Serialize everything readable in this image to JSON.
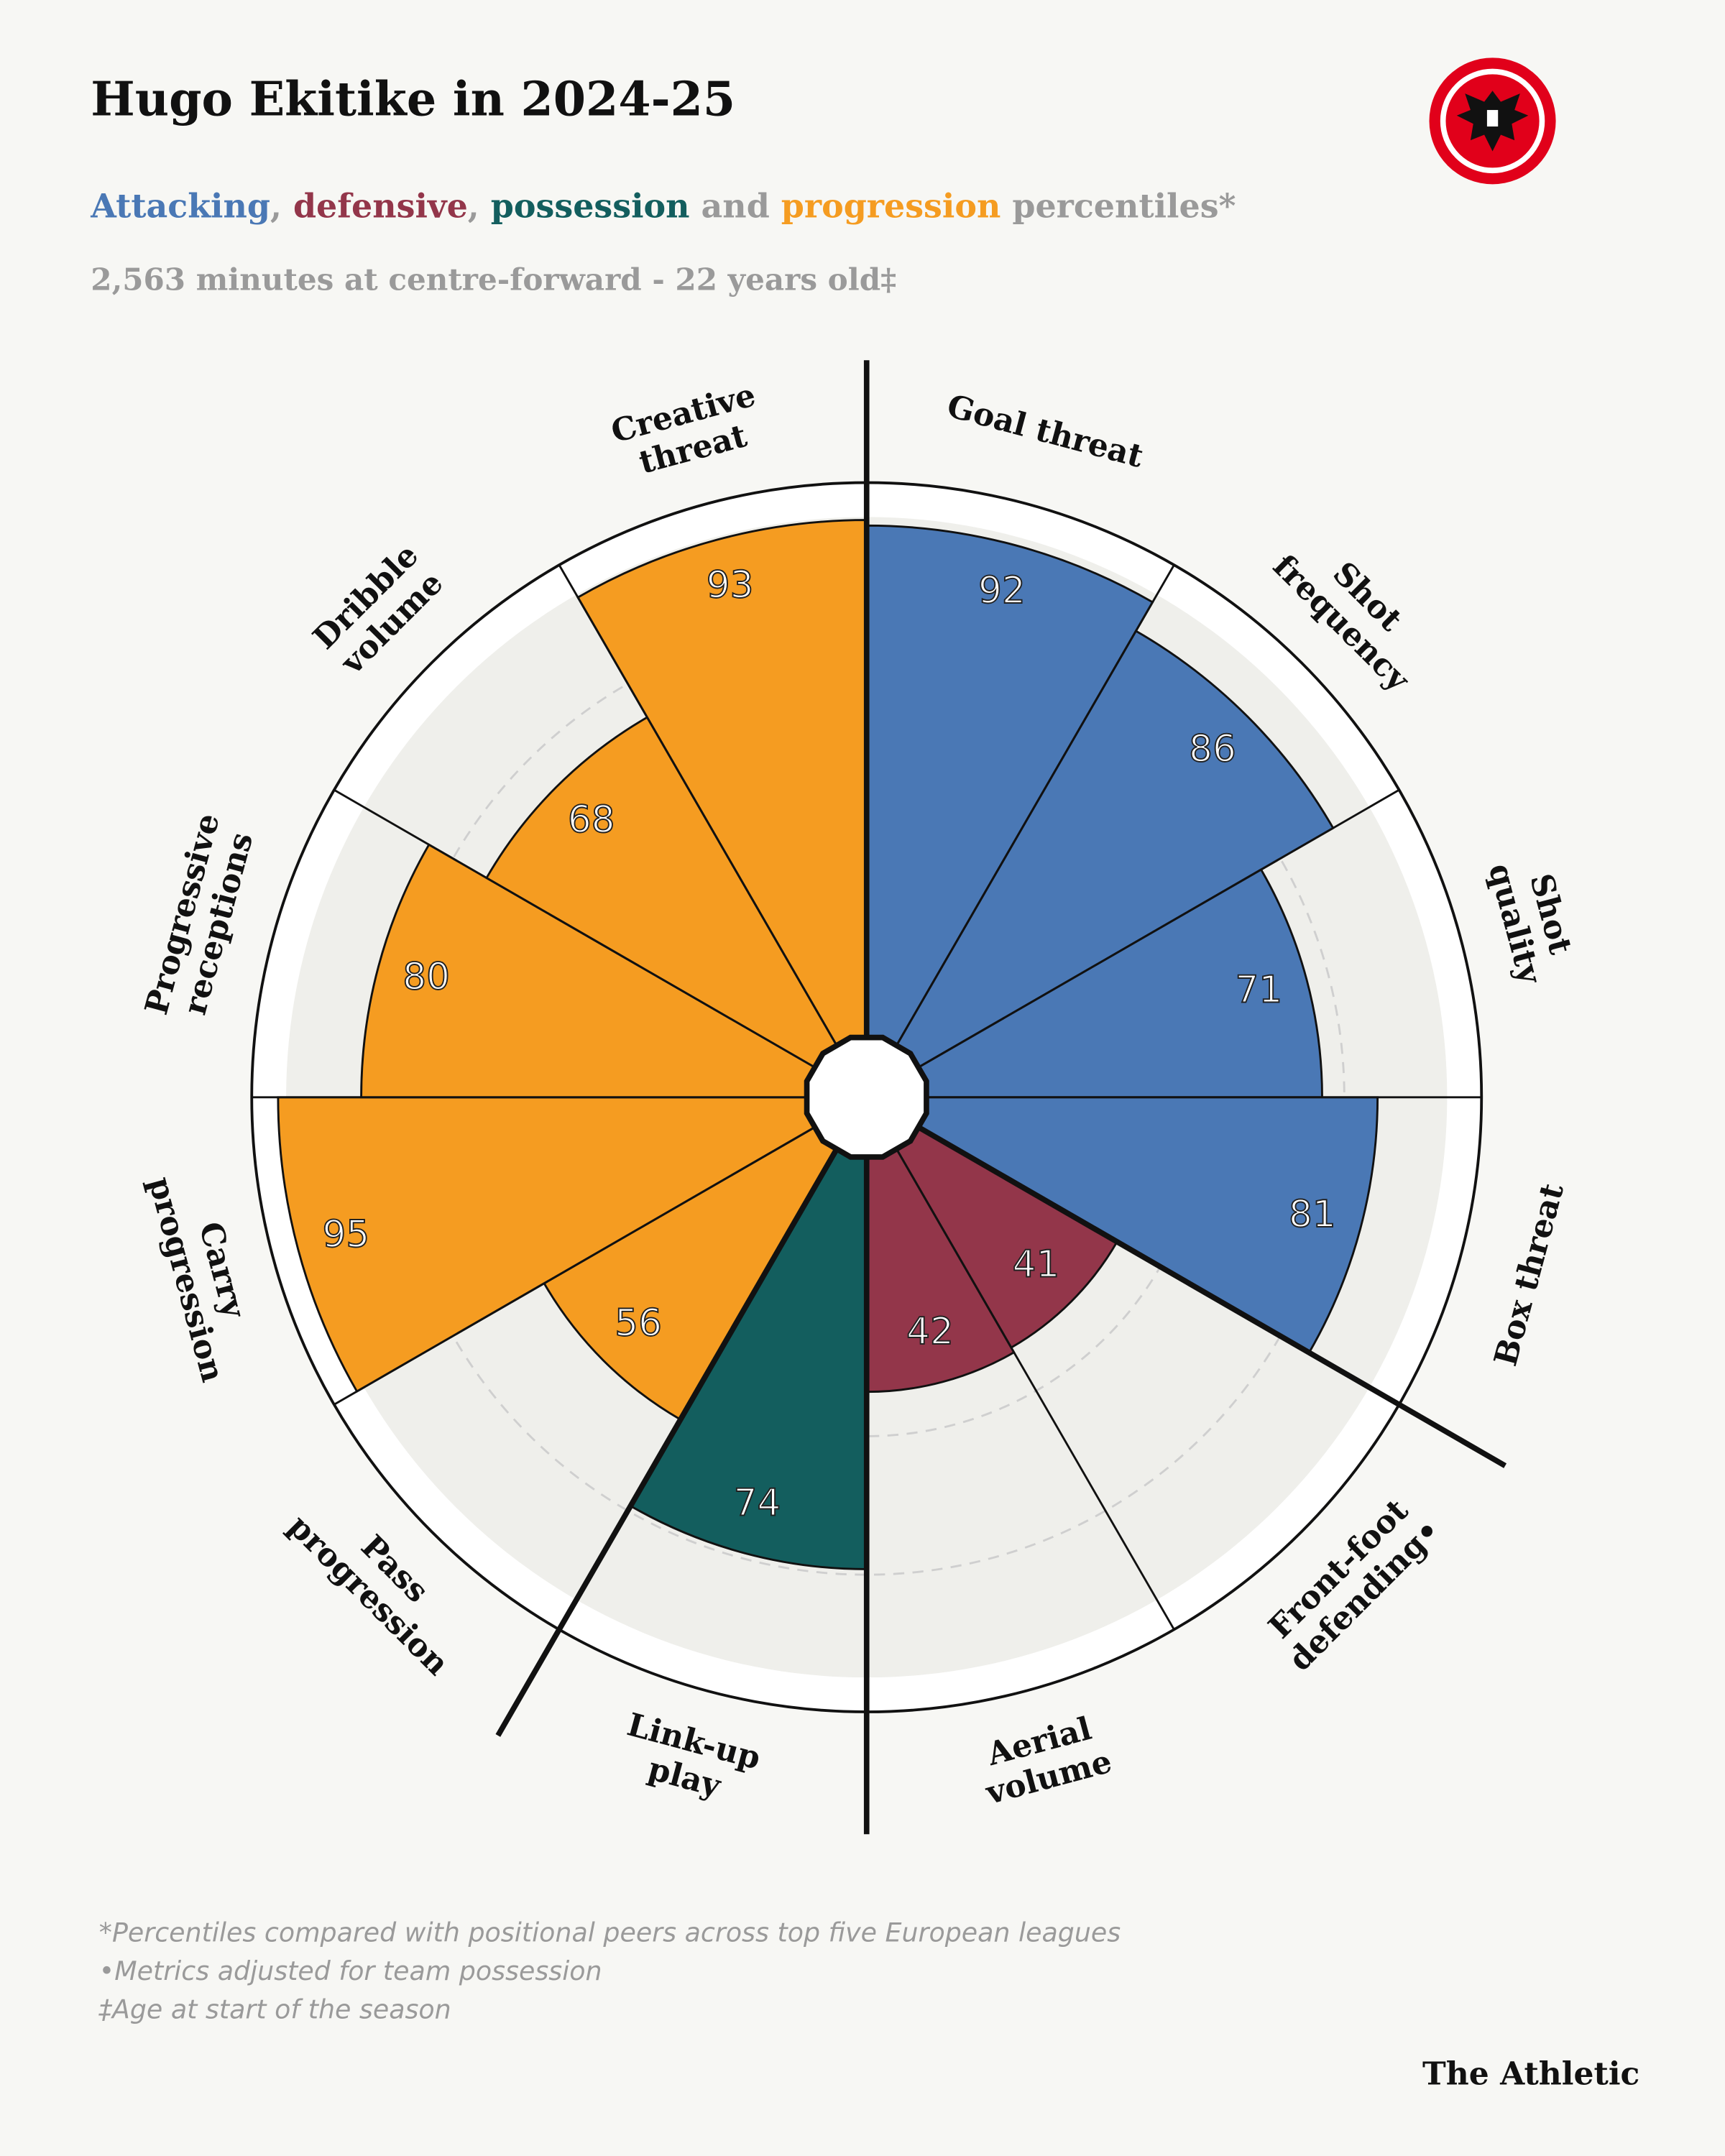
{
  "header": {
    "title": "Hugo Ekitike in 2024-25",
    "subtitle": [
      {
        "text": "Attacking",
        "color": "#4a78b5"
      },
      {
        "text": ", ",
        "color": "#9a9a9a"
      },
      {
        "text": "defensive",
        "color": "#93364a"
      },
      {
        "text": ", ",
        "color": "#9a9a9a"
      },
      {
        "text": "possession",
        "color": "#135e5e"
      },
      {
        "text": " and ",
        "color": "#9a9a9a"
      },
      {
        "text": "progression",
        "color": "#f59c21"
      },
      {
        "text": " percentiles*",
        "color": "#9a9a9a"
      }
    ],
    "info": "2,563 minutes at centre-forward - 22 years old‡"
  },
  "chart_data": {
    "type": "polar_bar",
    "categories": [
      [
        "Goal threat"
      ],
      [
        "Shot",
        "frequency"
      ],
      [
        "Shot",
        "quality"
      ],
      [
        "Box threat"
      ],
      [
        "Front-foot",
        "defending•"
      ],
      [
        "Aerial",
        "volume"
      ],
      [
        "Link-up",
        "play"
      ],
      [
        "Pass",
        "progression"
      ],
      [
        "Carry",
        "progression"
      ],
      [
        "Progressive",
        "receptions"
      ],
      [
        "Dribble",
        "volume"
      ],
      [
        "Creative",
        "threat"
      ]
    ],
    "values": [
      92,
      86,
      71,
      81,
      41,
      42,
      74,
      56,
      95,
      80,
      68,
      93
    ],
    "colors": [
      "#4a78b5",
      "#4a78b5",
      "#4a78b5",
      "#4a78b5",
      "#93364a",
      "#93364a",
      "#135e5e",
      "#f59c21",
      "#f59c21",
      "#f59c21",
      "#f59c21",
      "#f59c21"
    ],
    "rlim": [
      0,
      100
    ],
    "rticks": [
      25,
      50,
      75
    ]
  },
  "footnotes": [
    "*Percentiles compared with positional peers across top five European leagues",
    "•Metrics adjusted for team possession",
    "‡Age at start of the season"
  ],
  "brand": "The Athletic"
}
